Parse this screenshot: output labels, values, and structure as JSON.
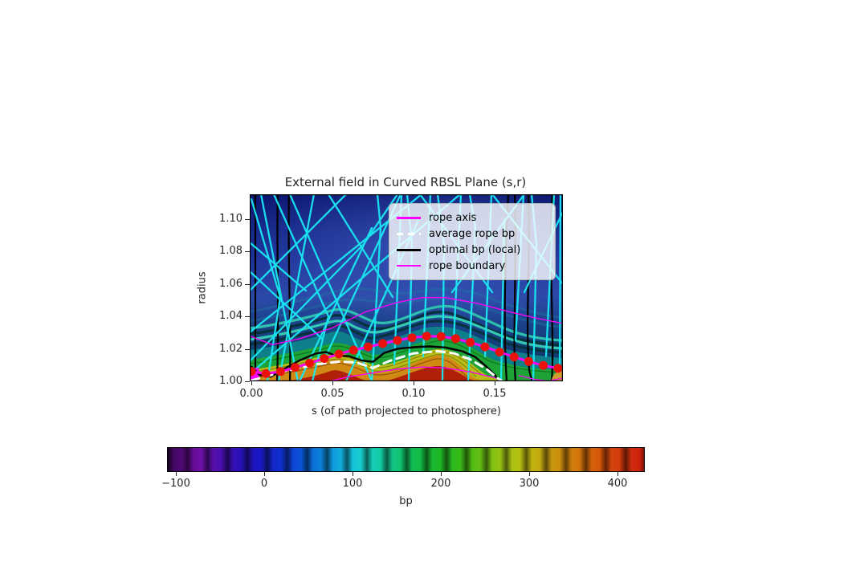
{
  "figure": {
    "title": "External field in Curved RBSL Plane (s,r)",
    "x_axis": {
      "label": "s (of path projected to photosphere)",
      "ticks": [
        "0.00",
        "0.05",
        "0.10",
        "0.15"
      ]
    },
    "y_axis": {
      "label": "radius",
      "ticks": [
        "1.00",
        "1.02",
        "1.04",
        "1.06",
        "1.08",
        "1.10"
      ]
    },
    "legend": {
      "items": [
        {
          "label": "rope axis",
          "color": "#ff00ff",
          "line_style": "solid",
          "line_width": 3
        },
        {
          "label": "average rope bp",
          "color": "#ffffff",
          "line_style": "dashed",
          "line_width": 3
        },
        {
          "label": "optimal bp (local)",
          "color": "#000000",
          "line_style": "solid",
          "line_width": 3
        },
        {
          "label": "rope boundary",
          "color": "#ff00ff",
          "line_style": "solid",
          "line_width": 1.5
        }
      ]
    },
    "colorbar": {
      "label": "bp",
      "ticks": [
        "−100",
        "0",
        "100",
        "200",
        "300",
        "400"
      ]
    }
  },
  "chart_data": {
    "type": "heatmap",
    "title": "External field in Curved RBSL Plane (s,r)",
    "xlabel": "s (of path projected to photosphere)",
    "ylabel": "radius",
    "xlim": [
      0,
      0.192
    ],
    "ylim": [
      1.0,
      1.115
    ],
    "grid": false,
    "legend_position": "upper right",
    "colorbar": {
      "label": "bp",
      "min": -110,
      "max": 430,
      "ticks": [
        -100,
        0,
        100,
        200,
        300,
        400
      ]
    },
    "background": {
      "description": "2D map of external field bp in curved RBSL plane: dark blue weak-field region above, rippled teal/green bands near photosphere, two strong positive (red/orange) concentrations near r=1.0 at s≈0.05 and s≈0.115, overlaid cyan external field lines and black local-optimum curves"
    },
    "series": [
      {
        "name": "rope-boundary-upper",
        "label": "rope boundary",
        "color": "#ff00ff",
        "line_width": 1.3,
        "points": [
          [
            0,
            1.0275
          ],
          [
            0.013,
            1.0225
          ],
          [
            0.03,
            1.0262
          ],
          [
            0.05,
            1.033
          ],
          [
            0.07,
            1.0425
          ],
          [
            0.09,
            1.0485
          ],
          [
            0.105,
            1.0515
          ],
          [
            0.12,
            1.0515
          ],
          [
            0.14,
            1.0478
          ],
          [
            0.16,
            1.0425
          ],
          [
            0.175,
            1.039
          ],
          [
            0.191,
            1.0358
          ]
        ]
      },
      {
        "name": "rope-boundary-lower",
        "label": "rope boundary",
        "color": "#ff00ff",
        "line_width": 1.3,
        "points": [
          [
            0.048,
            1.0
          ],
          [
            0.06,
            1.0028
          ],
          [
            0.075,
            1.0052
          ],
          [
            0.09,
            1.0075
          ],
          [
            0.105,
            1.0088
          ],
          [
            0.12,
            1.0082
          ],
          [
            0.135,
            1.0058
          ],
          [
            0.15,
            1.0022
          ],
          [
            0.156,
            1.0
          ]
        ]
      },
      {
        "name": "rope-boundary-right",
        "label": "rope boundary",
        "color": "#ff00ff",
        "line_width": 1.3,
        "points": [
          [
            0.165,
            1.0035
          ],
          [
            0.175,
            1.0012
          ],
          [
            0.183,
            1.0002
          ],
          [
            0.191,
            1.0018
          ]
        ]
      },
      {
        "name": "optimal-bp-local",
        "label": "optimal bp (local)",
        "color": "#000000",
        "line_width": 2.4,
        "points": [
          [
            0,
            1.009
          ],
          [
            0.005,
            1.004
          ],
          [
            0.012,
            1.0028
          ],
          [
            0.02,
            1.0075
          ],
          [
            0.03,
            1.013
          ],
          [
            0.04,
            1.0172
          ],
          [
            0.046,
            1.018
          ],
          [
            0.052,
            1.0158
          ],
          [
            0.06,
            1.0155
          ],
          [
            0.068,
            1.0128
          ],
          [
            0.075,
            1.012
          ],
          [
            0.082,
            1.0175
          ],
          [
            0.09,
            1.02
          ],
          [
            0.1,
            1.021
          ],
          [
            0.11,
            1.0215
          ],
          [
            0.12,
            1.0208
          ],
          [
            0.13,
            1.0185
          ],
          [
            0.138,
            1.015
          ],
          [
            0.145,
            1.009
          ],
          [
            0.15,
            1.004
          ],
          [
            0.153,
            1.0
          ]
        ]
      },
      {
        "name": "average-rope-bp",
        "label": "average rope bp",
        "color": "#ffffff",
        "line_width": 3,
        "dash": "10 7",
        "points": [
          [
            0,
            1.0005
          ],
          [
            0.02,
            1.006
          ],
          [
            0.04,
            1.0105
          ],
          [
            0.055,
            1.0122
          ],
          [
            0.065,
            1.0115
          ],
          [
            0.075,
            1.0082
          ],
          [
            0.085,
            1.0125
          ],
          [
            0.1,
            1.0172
          ],
          [
            0.115,
            1.0185
          ],
          [
            0.125,
            1.0172
          ],
          [
            0.135,
            1.0135
          ],
          [
            0.145,
            1.0075
          ],
          [
            0.152,
            1.0018
          ],
          [
            0.155,
            1.0
          ]
        ]
      },
      {
        "name": "rope-axis",
        "label": "rope axis",
        "color": "#ff00ff",
        "line_width": 3,
        "markers": true,
        "marker_color": "#ea120b",
        "marker_size": 5.5,
        "points": [
          [
            0,
            1.006
          ],
          [
            0.009,
            1.0047
          ],
          [
            0.018,
            1.006
          ],
          [
            0.027,
            1.0085
          ],
          [
            0.036,
            1.0112
          ],
          [
            0.045,
            1.014
          ],
          [
            0.054,
            1.0168
          ],
          [
            0.063,
            1.0192
          ],
          [
            0.072,
            1.0212
          ],
          [
            0.081,
            1.0232
          ],
          [
            0.09,
            1.0252
          ],
          [
            0.099,
            1.0268
          ],
          [
            0.108,
            1.0278
          ],
          [
            0.117,
            1.0276
          ],
          [
            0.126,
            1.0262
          ],
          [
            0.135,
            1.024
          ],
          [
            0.144,
            1.0212
          ],
          [
            0.153,
            1.018
          ],
          [
            0.162,
            1.015
          ],
          [
            0.171,
            1.0122
          ],
          [
            0.18,
            1.0098
          ],
          [
            0.189,
            1.008
          ]
        ]
      }
    ],
    "annotations": [
      {
        "name": "rope-footpoint-start",
        "marker": "square",
        "color": "#ff00ff",
        "x": 0.0,
        "y": 1.0035,
        "size": 19
      },
      {
        "name": "rope-footpoint-end",
        "marker": "circle",
        "color": "#cf9c2e",
        "x": 0.1915,
        "y": 1.0,
        "size": 26
      }
    ]
  }
}
